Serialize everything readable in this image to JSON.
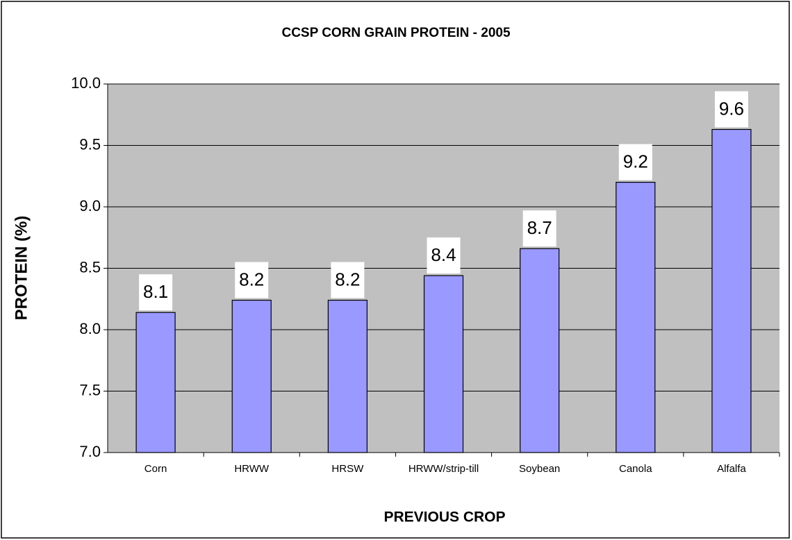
{
  "chart_data": {
    "type": "bar",
    "title": "CCSP CORN GRAIN PROTEIN - 2005",
    "x_label": "PREVIOUS CROP",
    "y_label": "PROTEIN (%)",
    "categories": [
      "Corn",
      "HRWW",
      "HRSW",
      "HRWW/strip-till",
      "Soybean",
      "Canola",
      "Alfalfa"
    ],
    "values": [
      8.14,
      8.24,
      8.24,
      8.44,
      8.66,
      9.2,
      9.63
    ],
    "value_labels": [
      "8.1",
      "8.2",
      "8.2",
      "8.4",
      "8.7",
      "9.2",
      "9.6"
    ],
    "color": "#9999ff",
    "ylim": [
      7,
      10
    ],
    "yticks": [
      {
        "value": 7,
        "label": "7.0"
      },
      7.5,
      {
        "value": 8,
        "label": "8.0"
      },
      8.5,
      {
        "value": 9,
        "label": "9.0"
      },
      9.5,
      {
        "value": 10,
        "label": "10.0"
      }
    ],
    "grid": true
  }
}
